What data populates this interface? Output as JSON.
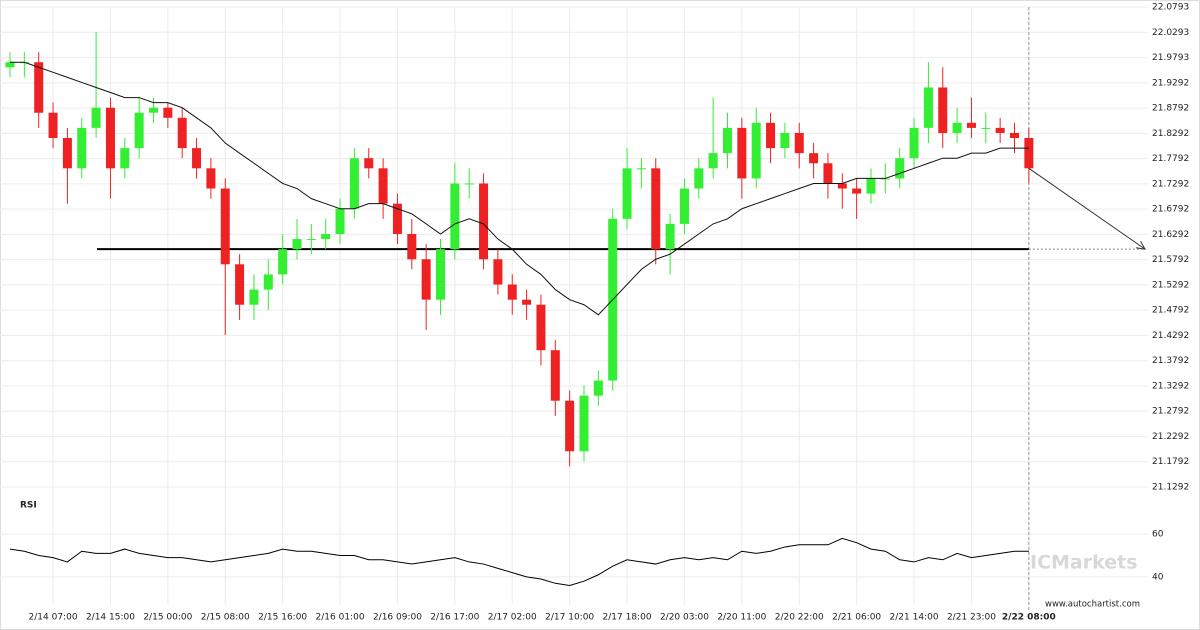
{
  "chart_data": {
    "type": "candlestick",
    "categories": [
      null,
      null,
      null,
      "2/14 07:00",
      null,
      null,
      null,
      "2/14 15:00",
      null,
      null,
      null,
      "2/15 00:00",
      null,
      null,
      null,
      "2/15 08:00",
      null,
      null,
      null,
      "2/15 16:00",
      null,
      null,
      null,
      "2/16 01:00",
      null,
      null,
      null,
      "2/16 09:00",
      null,
      null,
      null,
      "2/16 17:00",
      null,
      null,
      null,
      "2/17 02:00",
      null,
      null,
      null,
      "2/17 10:00",
      null,
      null,
      null,
      "2/17 18:00",
      null,
      null,
      null,
      "2/20 03:00",
      null,
      null,
      null,
      "2/20 11:00",
      null,
      null,
      null,
      "2/20 22:00",
      null,
      null,
      null,
      "2/21 06:00",
      null,
      null,
      null,
      "2/21 14:00",
      null,
      null,
      null,
      "2/21 23:00",
      null,
      null,
      null,
      "2/22 08:00"
    ],
    "open": [
      21.96,
      21.97,
      21.97,
      21.87,
      21.82,
      21.76,
      21.84,
      21.88,
      21.76,
      21.8,
      21.87,
      21.88,
      21.86,
      21.8,
      21.76,
      21.72,
      21.57,
      21.49,
      21.52,
      21.55,
      21.6,
      21.62,
      21.62,
      21.63,
      21.68,
      21.78,
      21.76,
      21.69,
      21.63,
      21.58,
      21.5,
      21.6,
      21.73,
      21.73,
      21.58,
      21.53,
      21.5,
      21.49,
      21.4,
      21.3,
      21.2,
      21.31,
      21.34,
      21.66,
      21.76,
      21.76,
      21.6,
      21.65,
      21.72,
      21.76,
      21.79,
      21.84,
      21.74,
      21.85,
      21.8,
      21.83,
      21.79,
      21.77,
      21.73,
      21.72,
      21.71,
      21.74,
      21.74,
      21.78,
      21.84,
      21.92,
      21.83,
      21.85,
      21.84,
      21.84,
      21.83,
      21.82
    ],
    "high": [
      21.99,
      21.99,
      21.99,
      21.89,
      21.84,
      21.86,
      22.03,
      21.9,
      21.82,
      21.9,
      21.9,
      21.89,
      21.88,
      21.82,
      21.78,
      21.74,
      21.59,
      21.55,
      21.58,
      21.63,
      21.66,
      21.65,
      21.66,
      21.7,
      21.8,
      21.8,
      21.78,
      21.71,
      21.66,
      21.61,
      21.62,
      21.77,
      21.76,
      21.75,
      21.6,
      21.55,
      21.52,
      21.51,
      21.42,
      21.32,
      21.33,
      21.36,
      21.68,
      21.8,
      21.78,
      21.78,
      21.67,
      21.74,
      21.78,
      21.9,
      21.87,
      21.86,
      21.88,
      21.87,
      21.85,
      21.85,
      21.81,
      21.79,
      21.75,
      21.74,
      21.76,
      21.77,
      21.8,
      21.86,
      21.97,
      21.96,
      21.88,
      21.9,
      21.87,
      21.86,
      21.85,
      21.84
    ],
    "low": [
      21.94,
      21.94,
      21.84,
      21.8,
      21.69,
      21.74,
      21.82,
      21.7,
      21.74,
      21.78,
      21.85,
      21.84,
      21.78,
      21.74,
      21.7,
      21.43,
      21.46,
      21.46,
      21.48,
      21.53,
      21.58,
      21.59,
      21.6,
      21.61,
      21.66,
      21.74,
      21.66,
      21.61,
      21.56,
      21.44,
      21.47,
      21.58,
      21.7,
      21.56,
      21.51,
      21.47,
      21.46,
      21.37,
      21.27,
      21.17,
      21.18,
      21.29,
      21.32,
      21.64,
      21.72,
      21.57,
      21.55,
      21.63,
      21.7,
      21.74,
      21.76,
      21.7,
      21.72,
      21.77,
      21.78,
      21.76,
      21.74,
      21.7,
      21.68,
      21.66,
      21.69,
      21.71,
      21.72,
      21.76,
      21.81,
      21.8,
      21.81,
      21.82,
      21.81,
      21.81,
      21.79,
      21.73
    ],
    "close": [
      21.97,
      21.97,
      21.87,
      21.82,
      21.76,
      21.84,
      21.88,
      21.76,
      21.8,
      21.87,
      21.88,
      21.86,
      21.8,
      21.76,
      21.72,
      21.57,
      21.49,
      21.52,
      21.55,
      21.6,
      21.62,
      21.62,
      21.63,
      21.68,
      21.78,
      21.76,
      21.69,
      21.63,
      21.58,
      21.5,
      21.6,
      21.73,
      21.73,
      21.58,
      21.53,
      21.5,
      21.49,
      21.4,
      21.3,
      21.2,
      21.31,
      21.34,
      21.66,
      21.76,
      21.76,
      21.6,
      21.65,
      21.72,
      21.76,
      21.79,
      21.84,
      21.74,
      21.85,
      21.8,
      21.83,
      21.79,
      21.77,
      21.73,
      21.72,
      21.71,
      21.74,
      21.74,
      21.78,
      21.84,
      21.92,
      21.83,
      21.85,
      21.84,
      21.84,
      21.83,
      21.82,
      21.76
    ],
    "up_color": "#33ee33",
    "down_color": "#ee2222",
    "moving_average": [
      21.97,
      21.97,
      21.96,
      21.95,
      21.94,
      21.93,
      21.92,
      21.91,
      21.9,
      21.9,
      21.89,
      21.89,
      21.88,
      21.86,
      21.84,
      21.81,
      21.79,
      21.77,
      21.75,
      21.73,
      21.72,
      21.7,
      21.69,
      21.68,
      21.68,
      21.69,
      21.69,
      21.68,
      21.67,
      21.65,
      21.63,
      21.65,
      21.66,
      21.65,
      21.62,
      21.6,
      21.57,
      21.55,
      21.52,
      21.5,
      21.49,
      21.47,
      21.5,
      21.53,
      21.56,
      21.58,
      21.59,
      21.61,
      21.63,
      21.65,
      21.66,
      21.68,
      21.69,
      21.7,
      21.71,
      21.72,
      21.73,
      21.73,
      21.73,
      21.74,
      21.74,
      21.74,
      21.75,
      21.76,
      21.77,
      21.78,
      21.78,
      21.79,
      21.79,
      21.8,
      21.8,
      21.8
    ],
    "support_level": 21.6,
    "ylim": [
      21.1292,
      22.0793
    ],
    "yticks": [
      22.0793,
      22.0293,
      21.9793,
      21.9292,
      21.8792,
      21.8292,
      21.7792,
      21.7292,
      21.6792,
      21.6292,
      21.5792,
      21.5292,
      21.4792,
      21.4292,
      21.3792,
      21.3292,
      21.2792,
      21.2292,
      21.1792,
      21.1292
    ],
    "rsi": {
      "label": "RSI",
      "ylim": [
        32,
        68
      ],
      "yticks": [
        40,
        60
      ],
      "values": [
        53,
        52,
        50,
        49,
        47,
        52,
        51,
        51,
        53,
        51,
        50,
        49,
        49,
        48,
        47,
        48,
        49,
        50,
        51,
        53,
        52,
        52,
        51,
        50,
        50,
        48,
        48,
        47,
        46,
        47,
        48,
        49,
        47,
        46,
        44,
        42,
        40,
        39,
        37,
        36,
        38,
        41,
        45,
        48,
        47,
        46,
        48,
        49,
        48,
        49,
        48,
        52,
        51,
        52,
        54,
        55,
        55,
        55,
        58,
        56,
        53,
        52,
        48,
        47,
        49,
        48,
        51,
        49,
        50,
        51,
        52,
        52
      ]
    },
    "watermark": "www.autochartist.com",
    "broker": "ICMarkets"
  }
}
